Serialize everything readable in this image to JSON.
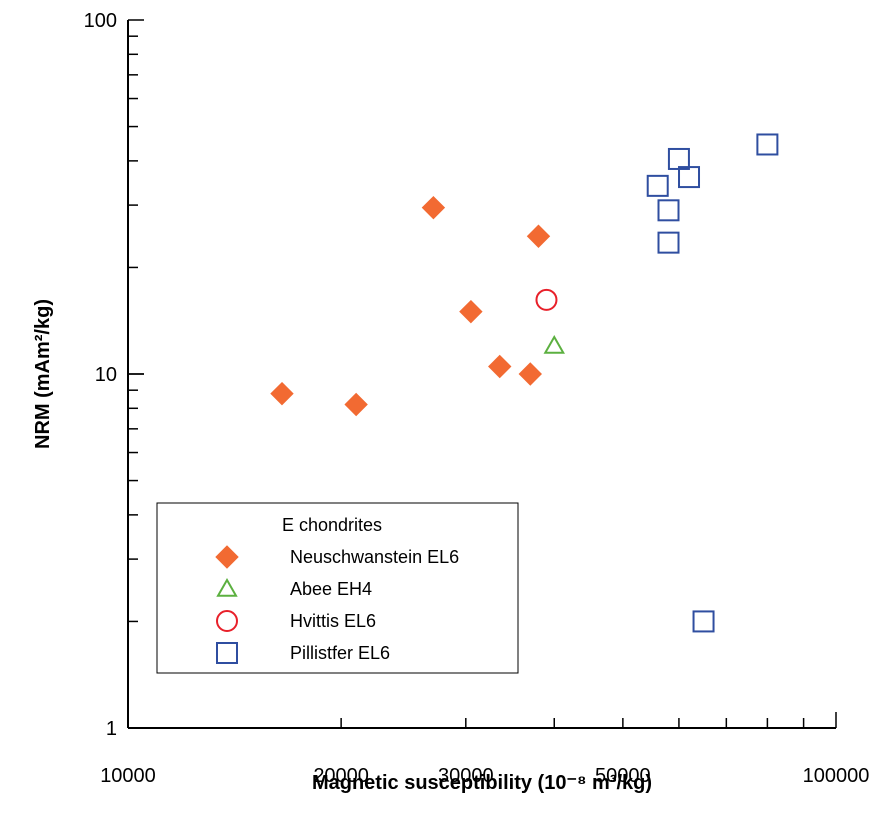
{
  "chart_data": {
    "type": "scatter",
    "xlabel": "Magnetic susceptibility (10⁻⁸ m³/kg)",
    "ylabel": "NRM (mAm²/kg)",
    "xscale": "log",
    "yscale": "log",
    "xlim": [
      10000,
      100000
    ],
    "ylim": [
      1,
      100
    ],
    "x_tick_labels": [
      "10000",
      "20000",
      "30000",
      "50000",
      "100000"
    ],
    "y_tick_labels": [
      "1",
      "10",
      "100"
    ],
    "legend": {
      "title": "E chondrites",
      "placement": "lower-left"
    },
    "series": [
      {
        "name": "Neuschwanstein EL6",
        "marker": "filled-diamond",
        "color": "#f26a32",
        "points": [
          {
            "x": 16500,
            "y": 8.8
          },
          {
            "x": 21000,
            "y": 8.2
          },
          {
            "x": 27000,
            "y": 29.5
          },
          {
            "x": 30500,
            "y": 15
          },
          {
            "x": 33500,
            "y": 10.5
          },
          {
            "x": 37000,
            "y": 10
          },
          {
            "x": 38000,
            "y": 24.5
          }
        ]
      },
      {
        "name": "Abee EH4",
        "marker": "open-triangle",
        "color": "#5cb040",
        "points": [
          {
            "x": 40000,
            "y": 12
          }
        ]
      },
      {
        "name": "Hvittis EL6",
        "marker": "open-circle",
        "color": "#e8202a",
        "points": [
          {
            "x": 39000,
            "y": 16.2
          }
        ]
      },
      {
        "name": "Pillistfer EL6",
        "marker": "open-square",
        "color": "#2f4ea0",
        "points": [
          {
            "x": 56000,
            "y": 34
          },
          {
            "x": 58000,
            "y": 29
          },
          {
            "x": 58000,
            "y": 23.5
          },
          {
            "x": 60000,
            "y": 40.5
          },
          {
            "x": 62000,
            "y": 36
          },
          {
            "x": 80000,
            "y": 44.5
          },
          {
            "x": 65000,
            "y": 2
          }
        ]
      }
    ]
  }
}
